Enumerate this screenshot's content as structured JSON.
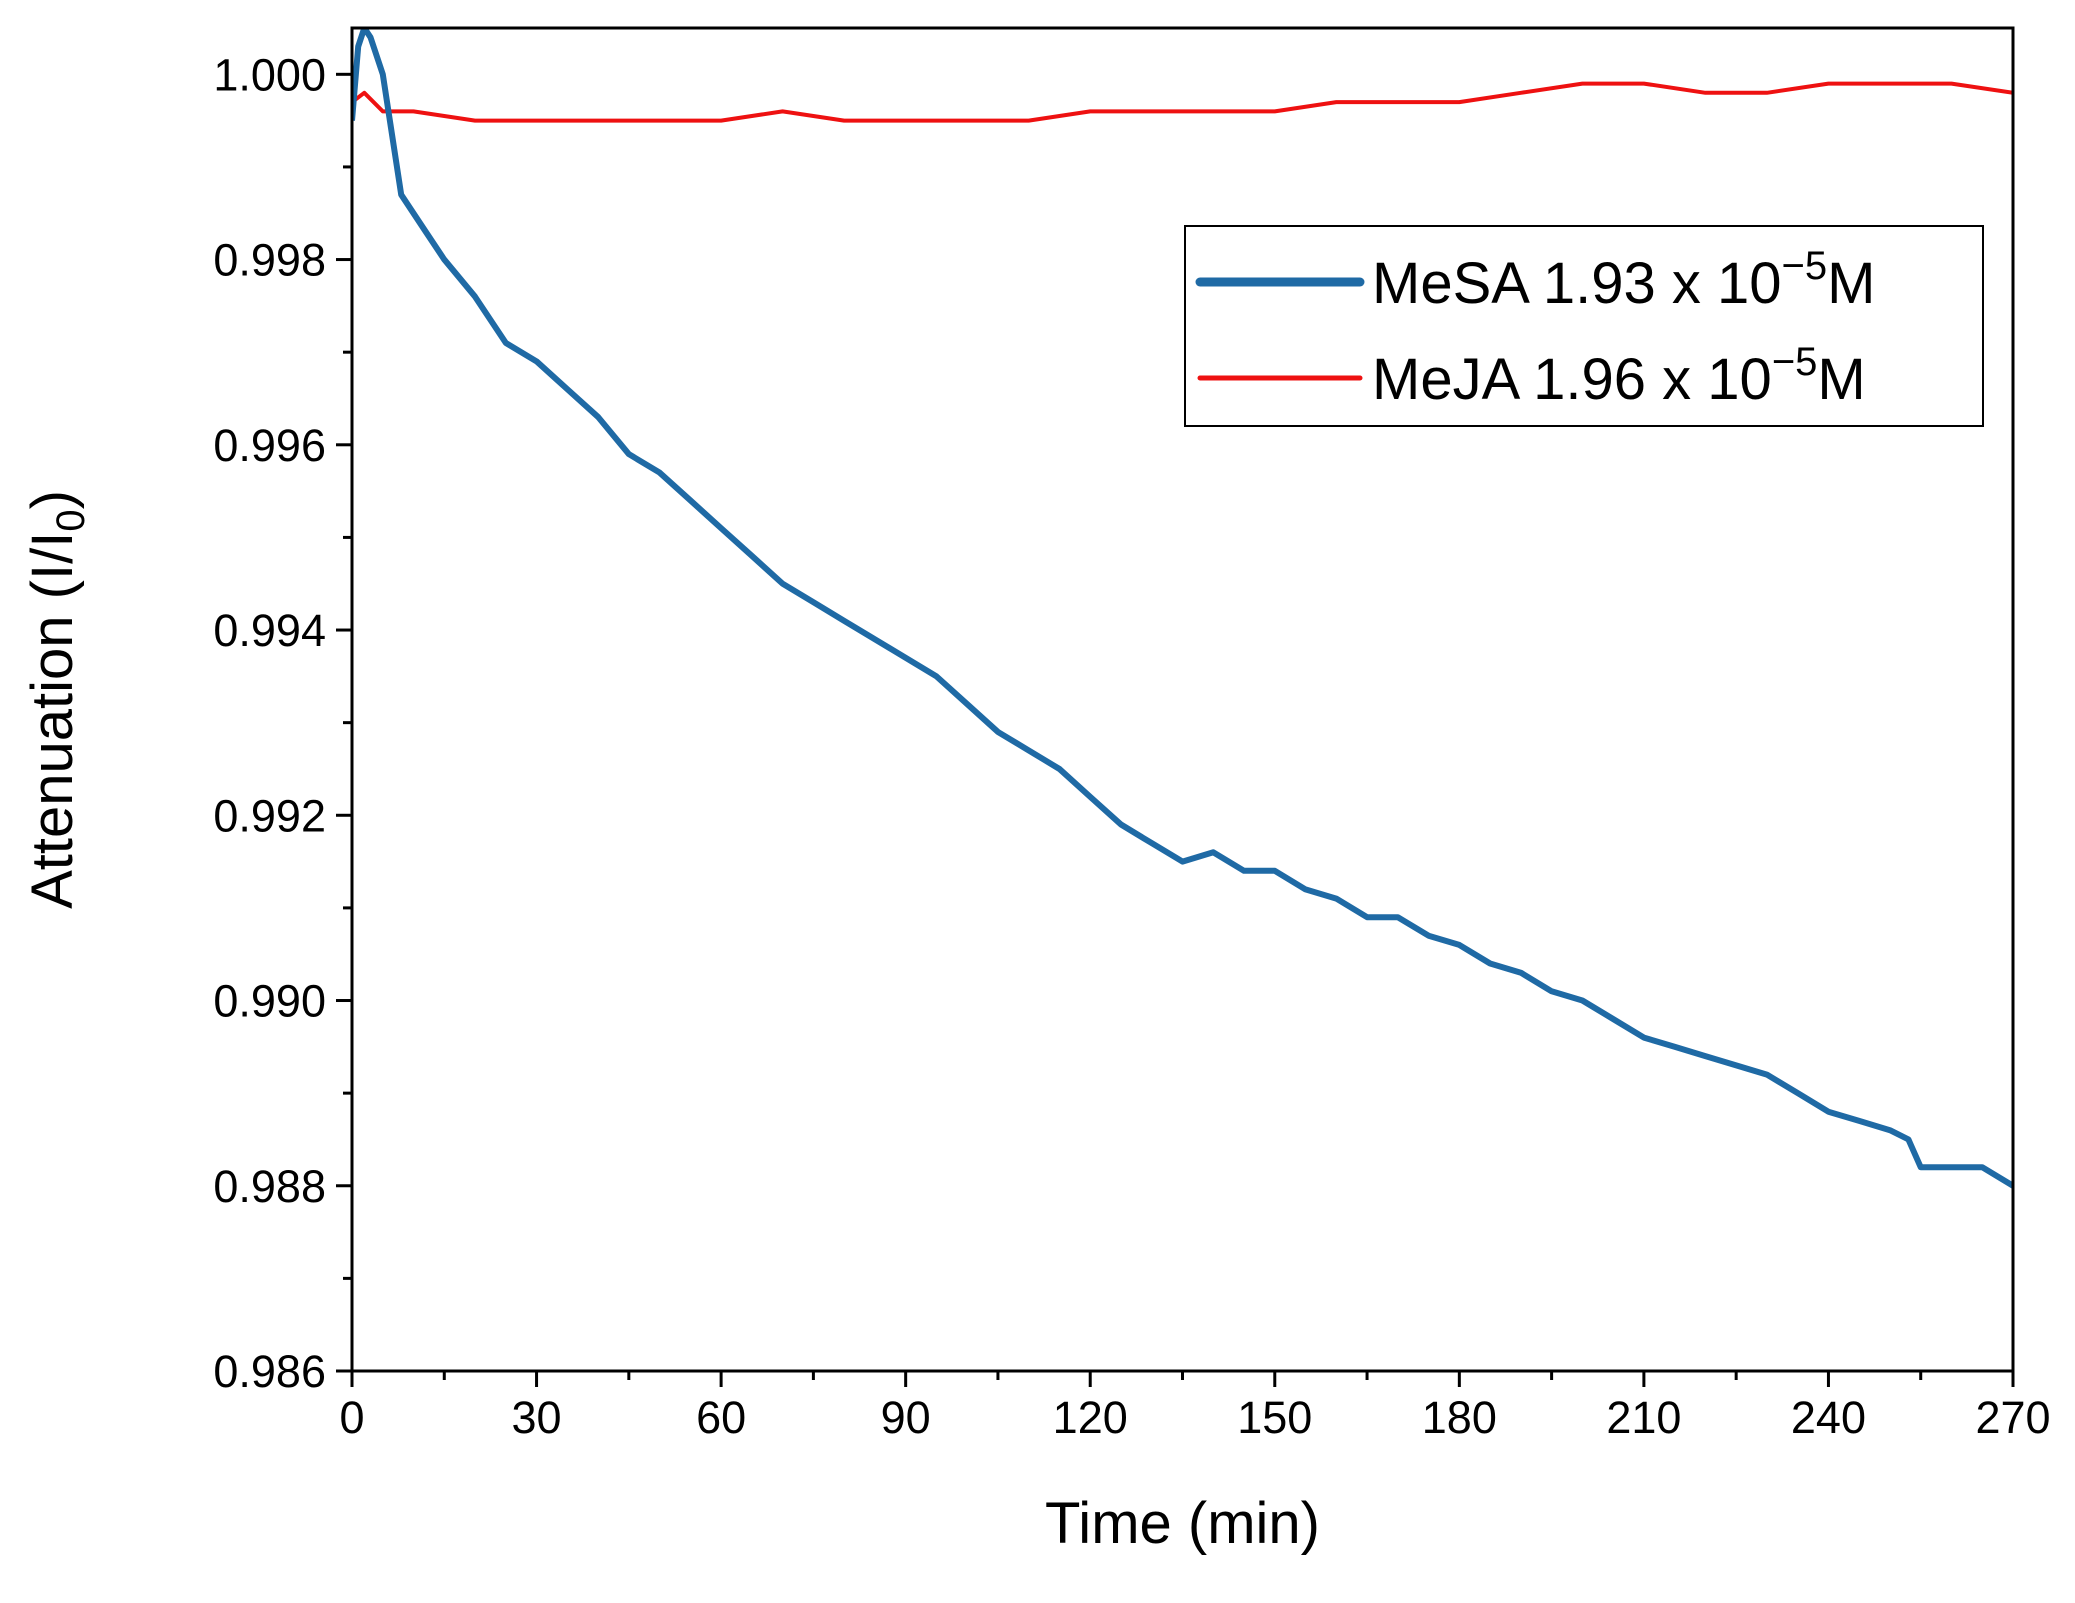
{
  "chart_data": {
    "type": "line",
    "title": "",
    "xlabel": "Time (min)",
    "ylabel": {
      "main": "Attenuation (I/I",
      "sub": "0",
      "close": ")"
    },
    "xlim": [
      0,
      270
    ],
    "ylim": [
      0.986,
      1.0005
    ],
    "x_ticks": [
      "0",
      "30",
      "60",
      "90",
      "120",
      "150",
      "180",
      "210",
      "240",
      "270"
    ],
    "x_tick_values": [
      0,
      30,
      60,
      90,
      120,
      150,
      180,
      210,
      240,
      270
    ],
    "y_ticks": [
      "0.986",
      "0.988",
      "0.990",
      "0.992",
      "0.994",
      "0.996",
      "0.998",
      "1.000"
    ],
    "y_tick_values": [
      0.986,
      0.988,
      0.99,
      0.992,
      0.994,
      0.996,
      0.998,
      1.0
    ],
    "grid": false,
    "legend_position": "top-right",
    "series": [
      {
        "name": "MeSA 1.93 x 10",
        "name_exp": "−5",
        "name_unit": "M",
        "color": "#1f6aa5",
        "x": [
          0,
          1,
          2,
          3,
          5,
          8,
          12,
          15,
          20,
          25,
          30,
          35,
          40,
          45,
          50,
          55,
          60,
          65,
          70,
          75,
          80,
          85,
          90,
          95,
          100,
          105,
          110,
          115,
          120,
          125,
          130,
          135,
          140,
          145,
          150,
          155,
          160,
          165,
          170,
          175,
          180,
          185,
          190,
          195,
          200,
          205,
          210,
          215,
          220,
          225,
          230,
          235,
          240,
          245,
          250,
          253,
          255,
          260,
          265,
          270
        ],
        "y": [
          0.9995,
          1.0003,
          1.0005,
          1.0004,
          1.0,
          0.9987,
          0.9983,
          0.998,
          0.9976,
          0.9971,
          0.9969,
          0.9966,
          0.9963,
          0.9959,
          0.9957,
          0.9954,
          0.9951,
          0.9948,
          0.9945,
          0.9943,
          0.9941,
          0.9939,
          0.9937,
          0.9935,
          0.9932,
          0.9929,
          0.9927,
          0.9925,
          0.9922,
          0.9919,
          0.9917,
          0.9915,
          0.9916,
          0.9914,
          0.9914,
          0.9912,
          0.9911,
          0.9909,
          0.9909,
          0.9907,
          0.9906,
          0.9904,
          0.9903,
          0.9901,
          0.99,
          0.9898,
          0.9896,
          0.9895,
          0.9894,
          0.9893,
          0.9892,
          0.989,
          0.9888,
          0.9887,
          0.9886,
          0.9885,
          0.9882,
          0.9882,
          0.9882,
          0.988
        ]
      },
      {
        "name": "MeJA 1.96 x 10",
        "name_exp": "−5",
        "name_unit": "M",
        "color": "#ee1111",
        "x": [
          0,
          2,
          5,
          10,
          20,
          30,
          40,
          50,
          60,
          70,
          80,
          90,
          100,
          110,
          120,
          130,
          140,
          150,
          160,
          170,
          180,
          190,
          200,
          210,
          220,
          230,
          240,
          250,
          260,
          270
        ],
        "y": [
          0.9997,
          0.9998,
          0.9996,
          0.9996,
          0.9995,
          0.9995,
          0.9995,
          0.9995,
          0.9995,
          0.9996,
          0.9995,
          0.9995,
          0.9995,
          0.9995,
          0.9996,
          0.9996,
          0.9996,
          0.9996,
          0.9997,
          0.9997,
          0.9997,
          0.9998,
          0.9999,
          0.9999,
          0.9998,
          0.9998,
          0.9999,
          0.9999,
          0.9999,
          0.9998
        ]
      }
    ]
  }
}
